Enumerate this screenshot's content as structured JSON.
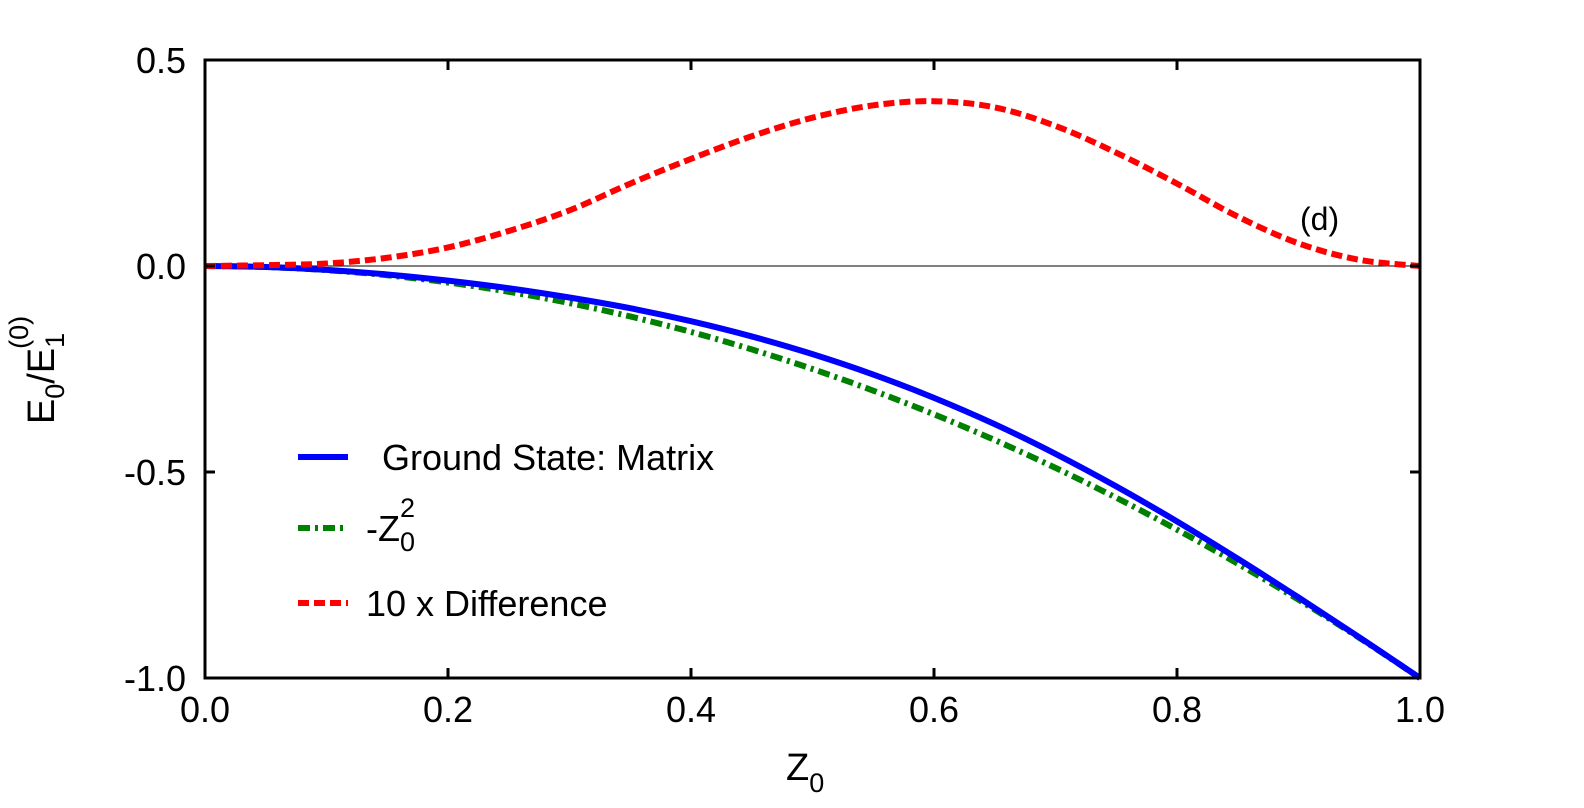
{
  "chart_data": {
    "type": "line",
    "panel_label": "(d)",
    "xlabel": {
      "base": "Z",
      "sub": "0"
    },
    "ylabel": {
      "base": "E",
      "sub": "0",
      "mid": "/E",
      "sub2": "1",
      "sup2": "(0)"
    },
    "xlim": [
      0.0,
      1.0
    ],
    "ylim": [
      -1.0,
      0.5
    ],
    "xticks": [
      "0.0",
      "0.2",
      "0.4",
      "0.6",
      "0.8",
      "1.0"
    ],
    "yticks": [
      "0.5",
      "0.0",
      "-0.5",
      "-1.0"
    ],
    "zero_line": true,
    "legend_position": "bottom-left",
    "series": [
      {
        "name": "Ground State: Matrix",
        "legend_text": "Ground State: Matrix",
        "color": "#0000ff",
        "style": "solid",
        "x": [
          0.0,
          0.05,
          0.1,
          0.15,
          0.2,
          0.25,
          0.3,
          0.35,
          0.4,
          0.45,
          0.5,
          0.55,
          0.6,
          0.65,
          0.7,
          0.75,
          0.8,
          0.85,
          0.9,
          0.95,
          1.0
        ],
        "y": [
          0.0,
          -0.0025,
          -0.01,
          -0.0225,
          -0.04,
          -0.0625,
          -0.09,
          -0.1225,
          -0.16,
          -0.2025,
          -0.25,
          -0.3025,
          -0.36,
          -0.4225,
          -0.49,
          -0.5625,
          -0.64,
          -0.7225,
          -0.81,
          -0.9025,
          -1.0
        ],
        "y_offset_from": "10 x Difference",
        "y_offset_scale": 0.1
      },
      {
        "name": "-Z0^2",
        "legend_text": {
          "prefix": "-Z",
          "sub": "0",
          "sup": "2"
        },
        "color": "#008000",
        "style": "dashdot",
        "x": [
          0.0,
          0.05,
          0.1,
          0.15,
          0.2,
          0.25,
          0.3,
          0.35,
          0.4,
          0.45,
          0.5,
          0.55,
          0.6,
          0.65,
          0.7,
          0.75,
          0.8,
          0.85,
          0.9,
          0.95,
          1.0
        ],
        "y": [
          0.0,
          -0.0025,
          -0.01,
          -0.0225,
          -0.04,
          -0.0625,
          -0.09,
          -0.1225,
          -0.16,
          -0.2025,
          -0.25,
          -0.3025,
          -0.36,
          -0.4225,
          -0.49,
          -0.5625,
          -0.64,
          -0.7225,
          -0.81,
          -0.9025,
          -1.0
        ]
      },
      {
        "name": "10 x Difference",
        "legend_text": "10 x Difference",
        "color": "#ff0000",
        "style": "dashed",
        "x": [
          0.0,
          0.05,
          0.1,
          0.15,
          0.2,
          0.25,
          0.3,
          0.35,
          0.4,
          0.45,
          0.5,
          0.55,
          0.6,
          0.65,
          0.7,
          0.75,
          0.8,
          0.85,
          0.9,
          0.95,
          1.0
        ],
        "y": [
          0.0,
          0.002,
          0.006,
          0.02,
          0.045,
          0.085,
          0.135,
          0.2,
          0.26,
          0.315,
          0.36,
          0.39,
          0.4,
          0.385,
          0.34,
          0.275,
          0.2,
          0.12,
          0.055,
          0.015,
          0.0
        ]
      }
    ]
  }
}
